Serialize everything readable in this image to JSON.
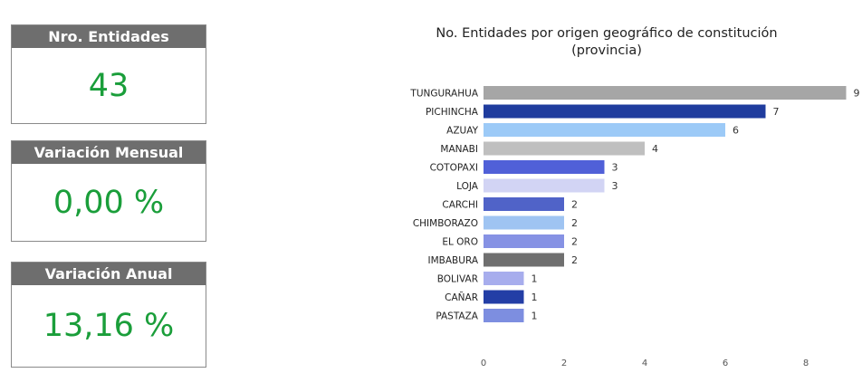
{
  "kpis": {
    "entidades": {
      "label": "Nro. Entidades",
      "value": "43"
    },
    "mensual": {
      "label": "Variación Mensual",
      "value": "0,00 %"
    },
    "anual": {
      "label": "Variación Anual",
      "value": "13,16 %"
    }
  },
  "chart_data": {
    "type": "bar",
    "orientation": "horizontal",
    "title": "No. Entidades por origen geográfico de constitución (provincia)",
    "title_lines": [
      "No. Entidades por origen geográfico de constitución",
      "(provincia)"
    ],
    "categories": [
      "TUNGURAHUA",
      "PICHINCHA",
      "AZUAY",
      "MANABI",
      "COTOPAXI",
      "LOJA",
      "CARCHI",
      "CHIMBORAZO",
      "EL ORO",
      "IMBABURA",
      "BOLIVAR",
      "CAÑAR",
      "PASTAZA"
    ],
    "values": [
      9,
      7,
      6,
      4,
      3,
      3,
      2,
      2,
      2,
      2,
      1,
      1,
      1
    ],
    "bar_colors": [
      "#a6a6a6",
      "#1f3c9e",
      "#9ccaf7",
      "#bfbfbf",
      "#5060d8",
      "#d2d4f4",
      "#5063c8",
      "#9fc4f2",
      "#8692e4",
      "#6f6f6f",
      "#a7aded",
      "#233ea6",
      "#7d8ee0"
    ],
    "xticks": [
      0,
      2,
      4,
      6,
      8
    ],
    "xlim": [
      0,
      9
    ],
    "grid": false,
    "legend": "none"
  }
}
